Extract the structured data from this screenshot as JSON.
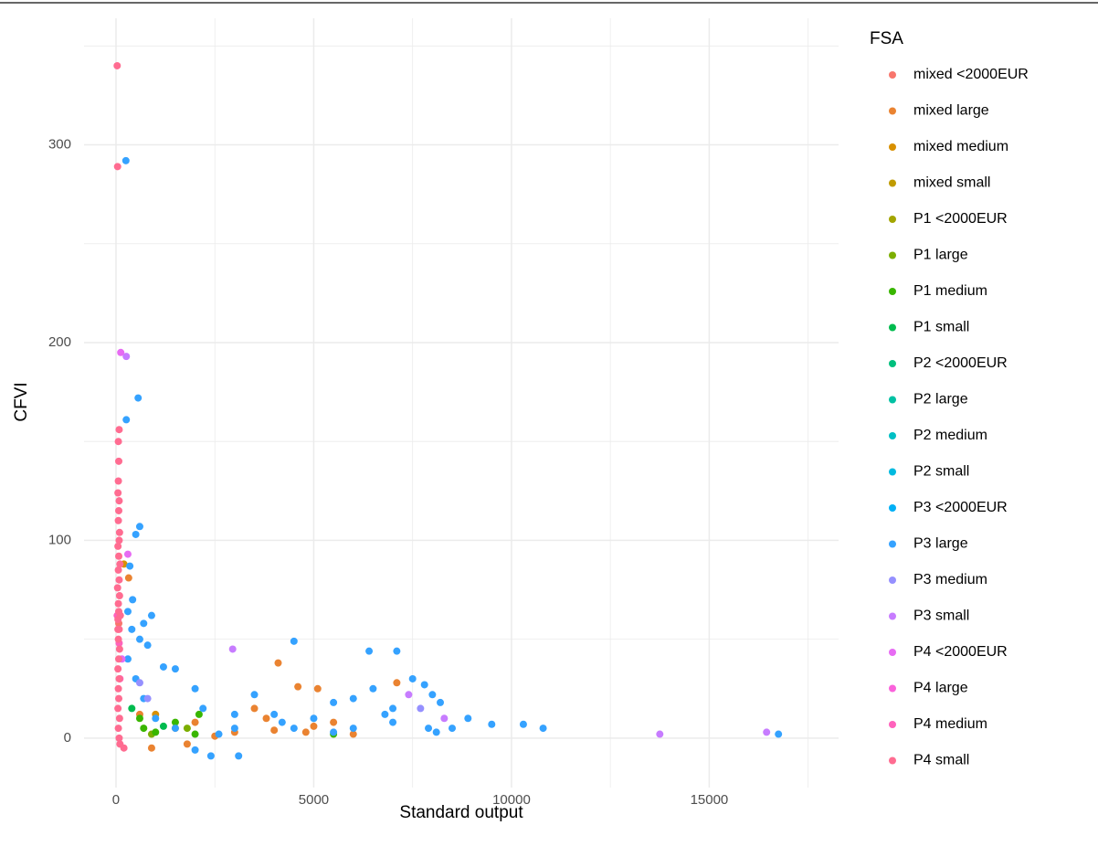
{
  "chart_data": {
    "type": "scatter",
    "x_label": "Standard output",
    "y_label": "CFVI",
    "legend_title": "FSA",
    "legend_position": "right",
    "xlim": [
      -808,
      18270
    ],
    "ylim": [
      -25,
      364
    ],
    "xticks": [
      0,
      5000,
      10000,
      15000
    ],
    "yticks": [
      0,
      100,
      200,
      300
    ],
    "x_minor_ticks": [
      2500,
      7500,
      12500,
      17500
    ],
    "y_minor_ticks": [
      50,
      150,
      250,
      350
    ],
    "grid": true,
    "series": [
      {
        "name": "mixed <2000EUR",
        "color": "#F8766D",
        "x": [
          70
        ],
        "values": [
          58
        ]
      },
      {
        "name": "mixed large",
        "color": "#EA8331",
        "x": [
          320,
          4100,
          4600,
          5100,
          7100,
          3500,
          1500,
          900,
          2000,
          3000,
          4000,
          5000,
          6000,
          2500,
          3800,
          600,
          1800,
          4800,
          5500
        ],
        "values": [
          81,
          38,
          26,
          25,
          28,
          15,
          5,
          -5,
          8,
          3,
          4,
          6,
          2,
          1,
          10,
          12,
          -3,
          3,
          8
        ]
      },
      {
        "name": "mixed medium",
        "color": "#D89000",
        "x": [
          200,
          1000
        ],
        "values": [
          88,
          12
        ]
      },
      {
        "name": "mixed small",
        "color": "#C09B00",
        "x": [],
        "values": []
      },
      {
        "name": "P1 <2000EUR",
        "color": "#A3A500",
        "x": [],
        "values": []
      },
      {
        "name": "P1 large",
        "color": "#7CAE00",
        "x": [
          900,
          1800
        ],
        "values": [
          2,
          5
        ]
      },
      {
        "name": "P1 medium",
        "color": "#39B600",
        "x": [
          700,
          1000,
          1500,
          2100,
          2000,
          600,
          5500
        ],
        "values": [
          5,
          3,
          8,
          12,
          2,
          10,
          2
        ]
      },
      {
        "name": "P1 small",
        "color": "#00BB4E",
        "x": [
          1200,
          400
        ],
        "values": [
          6,
          15
        ]
      },
      {
        "name": "P2 <2000EUR",
        "color": "#00BF7D",
        "x": [],
        "values": []
      },
      {
        "name": "P2 large",
        "color": "#00C1A3",
        "x": [],
        "values": []
      },
      {
        "name": "P2 medium",
        "color": "#00BFC4",
        "x": [],
        "values": []
      },
      {
        "name": "P2 small",
        "color": "#00BAE0",
        "x": [],
        "values": []
      },
      {
        "name": "P3 <2000EUR",
        "color": "#00B0F6",
        "x": [],
        "values": []
      },
      {
        "name": "P3 large",
        "color": "#35A2FF",
        "x": [
          250,
          560,
          260,
          600,
          500,
          350,
          420,
          300,
          700,
          900,
          400,
          600,
          800,
          1200,
          1500,
          2000,
          4500,
          6400,
          7100,
          2200,
          3000,
          3500,
          4000,
          5000,
          5500,
          6000,
          6500,
          7000,
          7500,
          7800,
          8000,
          8200,
          8500,
          8900,
          9500,
          10300,
          10800,
          16750,
          2400,
          3100,
          2000,
          4500,
          6000,
          7000,
          3000,
          1000,
          500,
          300,
          700,
          1500,
          2600,
          5500,
          7900,
          8100,
          6800,
          4200
        ],
        "values": [
          292,
          172,
          161,
          107,
          103,
          87,
          70,
          64,
          58,
          62,
          55,
          50,
          47,
          36,
          35,
          25,
          49,
          44,
          44,
          15,
          12,
          22,
          12,
          10,
          18,
          20,
          25,
          15,
          30,
          27,
          22,
          18,
          5,
          10,
          7,
          7,
          5,
          2,
          -9,
          -9,
          -6,
          5,
          5,
          8,
          5,
          10,
          30,
          40,
          20,
          5,
          2,
          3,
          5,
          3,
          12,
          8
        ]
      },
      {
        "name": "P3 medium",
        "color": "#9590FF",
        "x": [
          600,
          800,
          7700
        ],
        "values": [
          28,
          20,
          15
        ]
      },
      {
        "name": "P3 small",
        "color": "#C77CFF",
        "x": [
          260,
          2950,
          13750,
          16450,
          7400,
          8300
        ],
        "values": [
          193,
          45,
          2,
          3,
          22,
          10
        ]
      },
      {
        "name": "P4 <2000EUR",
        "color": "#E76BF3",
        "x": [
          120,
          300,
          150
        ],
        "values": [
          195,
          93,
          40
        ]
      },
      {
        "name": "P4 large",
        "color": "#FA62DB",
        "x": [],
        "values": []
      },
      {
        "name": "P4 medium",
        "color": "#FF62BC",
        "x": [
          30,
          80,
          100
        ],
        "values": [
          62,
          48,
          30
        ]
      },
      {
        "name": "P4 small",
        "color": "#FF6C91",
        "x": [
          30,
          40,
          80,
          60,
          70,
          60,
          50,
          80,
          70,
          60,
          90,
          80,
          50,
          70,
          100,
          60,
          80,
          40,
          90,
          60,
          70,
          50,
          80,
          60,
          90,
          70,
          50,
          80,
          60,
          70,
          50,
          90,
          60,
          80,
          100,
          200,
          50,
          110
        ],
        "values": [
          340,
          289,
          156,
          150,
          140,
          130,
          124,
          120,
          115,
          110,
          104,
          100,
          97,
          92,
          88,
          85,
          80,
          76,
          72,
          68,
          64,
          60,
          55,
          50,
          45,
          40,
          35,
          30,
          25,
          20,
          15,
          10,
          5,
          0,
          -3,
          -5,
          55,
          62
        ]
      }
    ]
  }
}
